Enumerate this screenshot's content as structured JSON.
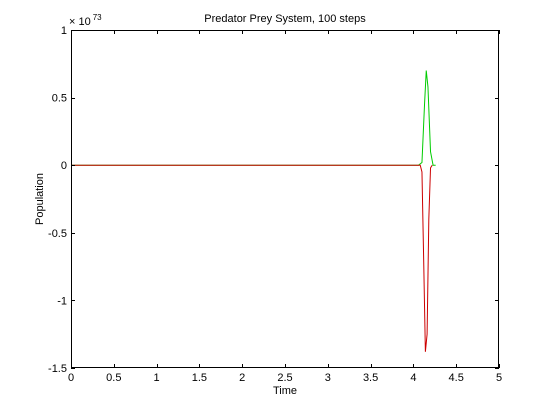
{
  "chart_data": {
    "type": "line",
    "title": "Predator Prey System, 100 steps",
    "xlabel": "Time",
    "ylabel": "Population",
    "y_exponent_base": "× 10",
    "y_exponent_power": "73",
    "xlim": [
      0,
      5
    ],
    "ylim": [
      -1.5,
      1
    ],
    "x_ticks": [
      0,
      0.5,
      1,
      1.5,
      2,
      2.5,
      3,
      3.5,
      4,
      4.5,
      5
    ],
    "y_ticks": [
      -1.5,
      -1,
      -0.5,
      0,
      0.5,
      1
    ],
    "x_tick_labels": [
      "0",
      "0.5",
      "1",
      "1.5",
      "2",
      "2.5",
      "3",
      "3.5",
      "4",
      "4.5",
      "5"
    ],
    "y_tick_labels": [
      "-1.5",
      "-1",
      "-0.5",
      "0",
      "0.5",
      "1"
    ],
    "grid": false,
    "series": [
      {
        "color": "#00cc00",
        "x": [
          0,
          4.06,
          4.1,
          4.13,
          4.15,
          4.17,
          4.2,
          4.23,
          4.26
        ],
        "y": [
          0,
          0,
          0.02,
          0.45,
          0.7,
          0.58,
          0.1,
          0,
          0
        ]
      },
      {
        "color": "#cc0000",
        "x": [
          0,
          4.05,
          4.08,
          4.1,
          4.12,
          4.14,
          4.16,
          4.18,
          4.2,
          4.22
        ],
        "y": [
          0,
          0,
          0,
          -0.05,
          -0.7,
          -1.38,
          -1.25,
          -0.4,
          -0.02,
          0
        ]
      }
    ]
  }
}
